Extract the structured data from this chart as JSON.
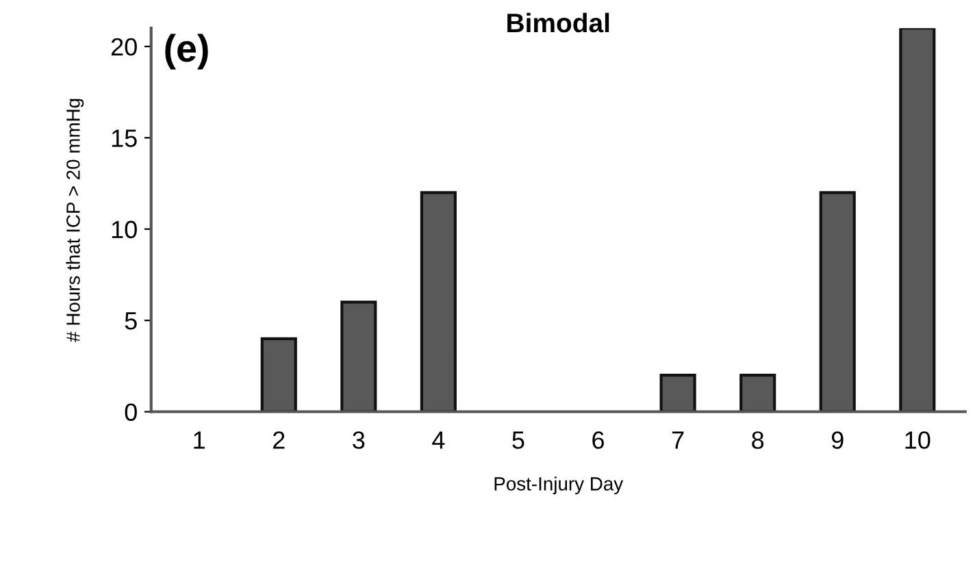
{
  "chart_data": {
    "type": "bar",
    "title": "Bimodal",
    "xlabel": "Post-Injury Day",
    "ylabel": "# Hours that ICP > 20 mmHg",
    "annotations": [
      "(e)"
    ],
    "categories": [
      "1",
      "2",
      "3",
      "4",
      "5",
      "6",
      "7",
      "8",
      "9",
      "10"
    ],
    "values": [
      0,
      4,
      6,
      12,
      0,
      0,
      2,
      2,
      12,
      21
    ],
    "color": "#595959",
    "ylim": [
      0,
      21
    ],
    "yticks": [
      0,
      5,
      10,
      15,
      20
    ],
    "grid": false,
    "legend": false
  }
}
